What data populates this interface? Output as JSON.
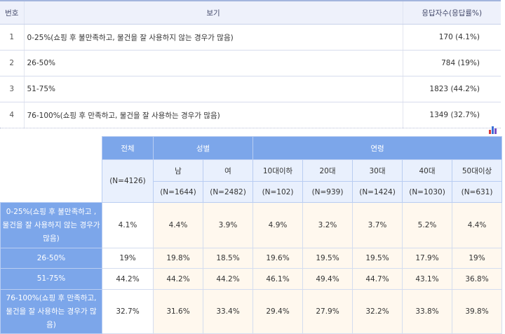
{
  "question_table": {
    "headers": {
      "no": "번호",
      "option": "보기",
      "responses": "응답자수(응답률%)"
    },
    "rows": [
      {
        "no": "1",
        "option": "0-25%(쇼핑 후 불만족하고, 물건을 잘 사용하지 않는 경우가 많음)",
        "responses": "170 (4.1%)"
      },
      {
        "no": "2",
        "option": "26-50%",
        "responses": "784 (19%)"
      },
      {
        "no": "3",
        "option": "51-75%",
        "responses": "1823 (44.2%)"
      },
      {
        "no": "4",
        "option": "76-100%(쇼핑 후 만족하고, 물건을 잘 사용하는 경우가 많음)",
        "responses": "1349 (32.7%)"
      }
    ]
  },
  "chart_icon": {
    "name": "bar-chart-icon",
    "colors": [
      "#d83a3a",
      "#3a6fd8",
      "#7a4fc4"
    ]
  },
  "cross_table": {
    "group_headers": {
      "total": "전체",
      "gender": "성별",
      "age": "연령"
    },
    "total_n": "(N=4126)",
    "columns": [
      {
        "label": "남",
        "n": "(N=1644)"
      },
      {
        "label": "여",
        "n": "(N=2482)"
      },
      {
        "label": "10대이하",
        "n": "(N=102)"
      },
      {
        "label": "20대",
        "n": "(N=939)"
      },
      {
        "label": "30대",
        "n": "(N=1424)"
      },
      {
        "label": "40대",
        "n": "(N=1030)"
      },
      {
        "label": "50대이상",
        "n": "(N=631)"
      }
    ],
    "rows": [
      {
        "label": "0-25%(쇼핑 후 불만족하고 , 물건을 잘 사용하지 않는 경우가 많음)",
        "total": "4.1%",
        "values": [
          "4.4%",
          "3.9%",
          "4.9%",
          "3.2%",
          "3.7%",
          "5.2%",
          "4.4%"
        ]
      },
      {
        "label": "26-50%",
        "total": "19%",
        "values": [
          "19.8%",
          "18.5%",
          "19.6%",
          "19.5%",
          "19.5%",
          "17.9%",
          "19%"
        ]
      },
      {
        "label": "51-75%",
        "total": "44.2%",
        "values": [
          "44.2%",
          "44.2%",
          "46.1%",
          "49.4%",
          "44.7%",
          "43.1%",
          "36.8%"
        ]
      },
      {
        "label": "76-100%(쇼핑 후 만족하고, 물건을 잘 사용하는 경우가 많음)",
        "total": "32.7%",
        "values": [
          "31.6%",
          "33.4%",
          "29.4%",
          "27.9%",
          "32.2%",
          "33.8%",
          "39.8%"
        ]
      }
    ]
  }
}
